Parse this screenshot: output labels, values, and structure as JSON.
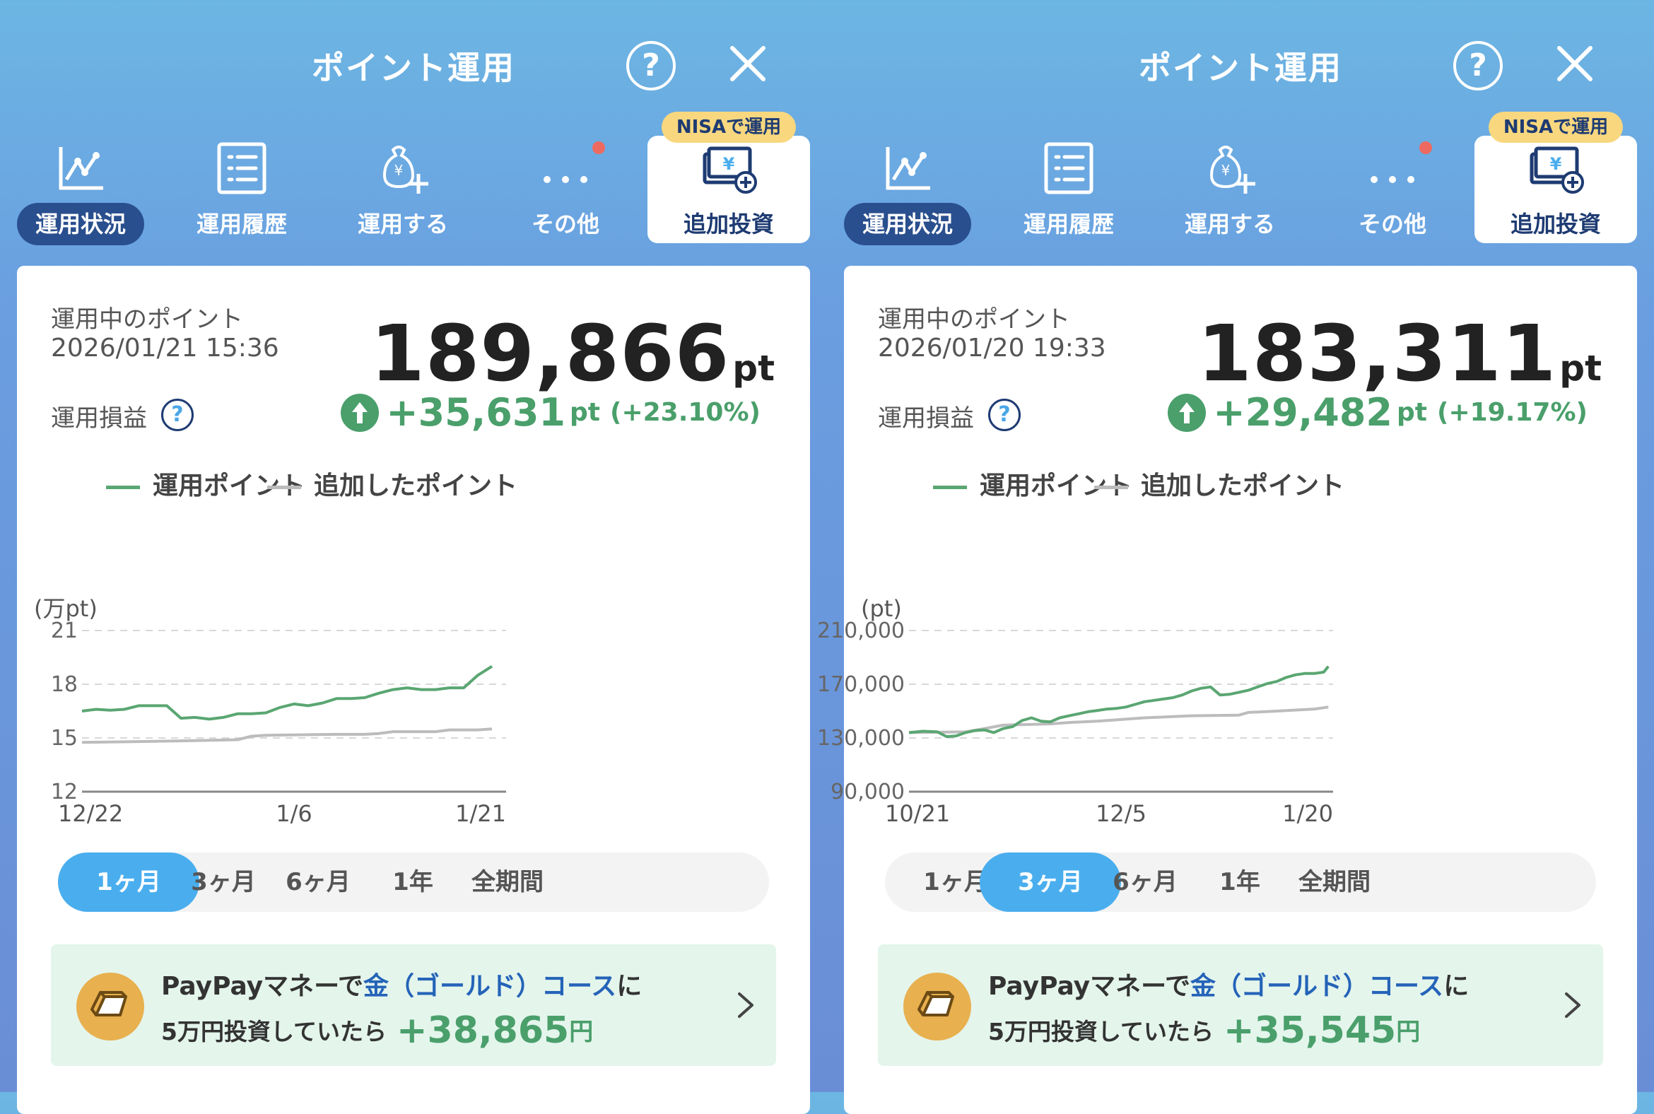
{
  "panels": [
    {
      "header": {
        "title": "ポイント運用",
        "help": "?"
      },
      "nav": {
        "items": [
          "運用状況",
          "運用履歴",
          "運用する",
          "その他"
        ],
        "add_label": "追加投資",
        "nisa_badge": "NISAで運用"
      },
      "summary": {
        "running_label": "運用中のポイント",
        "timestamp": "2026/01/21 15:36",
        "total": "189,866",
        "unit": "pt",
        "pl_label": "運用損益",
        "help": "?",
        "profit": "+35,631",
        "profit_unit": "pt",
        "profit_pct": "(+23.10%)"
      },
      "legend": {
        "series1": "運用ポイント",
        "series2": "追加したポイント"
      },
      "chart_data": {
        "type": "line",
        "ylabel": "(万pt)",
        "yticks": [
          "21",
          "18",
          "15",
          "12"
        ],
        "ylim": [
          12,
          21
        ],
        "xticks": [
          "12/22",
          "1/6",
          "1/21"
        ],
        "xlim": [
          0,
          30
        ],
        "series": [
          {
            "name": "運用ポイント",
            "color": "#5aa672",
            "points": [
              [
                0,
                16.5
              ],
              [
                1,
                16.6
              ],
              [
                2,
                16.55
              ],
              [
                3,
                16.6
              ],
              [
                4,
                16.8
              ],
              [
                5,
                16.8
              ],
              [
                6,
                16.8
              ],
              [
                7,
                16.1
              ],
              [
                8,
                16.15
              ],
              [
                9,
                16.05
              ],
              [
                10,
                16.15
              ],
              [
                11,
                16.35
              ],
              [
                12,
                16.35
              ],
              [
                13,
                16.4
              ],
              [
                14,
                16.7
              ],
              [
                15,
                16.9
              ],
              [
                16,
                16.8
              ],
              [
                17,
                16.95
              ],
              [
                18,
                17.2
              ],
              [
                19,
                17.2
              ],
              [
                20,
                17.25
              ],
              [
                21,
                17.5
              ],
              [
                22,
                17.7
              ],
              [
                23,
                17.8
              ],
              [
                24,
                17.7
              ],
              [
                25,
                17.7
              ],
              [
                26,
                17.8
              ],
              [
                27,
                17.8
              ],
              [
                28,
                18.5
              ],
              [
                29,
                19.0
              ]
            ]
          },
          {
            "name": "追加したポイント",
            "color": "#bcbcbc",
            "points": [
              [
                0,
                14.75
              ],
              [
                4,
                14.8
              ],
              [
                8,
                14.85
              ],
              [
                11,
                14.9
              ],
              [
                12,
                15.1
              ],
              [
                13,
                15.15
              ],
              [
                18,
                15.2
              ],
              [
                20,
                15.2
              ],
              [
                21,
                15.25
              ],
              [
                22,
                15.35
              ],
              [
                25,
                15.35
              ],
              [
                26,
                15.45
              ],
              [
                28,
                15.45
              ],
              [
                29,
                15.5
              ]
            ]
          }
        ]
      },
      "tabs": {
        "items": [
          "1ヶ月",
          "3ヶ月",
          "6ヶ月",
          "1年",
          "全期間"
        ],
        "active": 0
      },
      "promo": {
        "pre": "PayPayマネーで",
        "highlight": "金（ゴールド）コース",
        "post": "に",
        "line2": "5万円投資していたら",
        "amount": "+38,865",
        "unit": "円"
      }
    },
    {
      "header": {
        "title": "ポイント運用",
        "help": "?"
      },
      "nav": {
        "items": [
          "運用状況",
          "運用履歴",
          "運用する",
          "その他"
        ],
        "add_label": "追加投資",
        "nisa_badge": "NISAで運用"
      },
      "summary": {
        "running_label": "運用中のポイント",
        "timestamp": "2026/01/20 19:33",
        "total": "183,311",
        "unit": "pt",
        "pl_label": "運用損益",
        "help": "?",
        "profit": "+29,482",
        "profit_unit": "pt",
        "profit_pct": "(+19.17%)"
      },
      "legend": {
        "series1": "運用ポイント",
        "series2": "追加したポイント"
      },
      "chart_data": {
        "type": "line",
        "ylabel": "(pt)",
        "yticks": [
          "210,000",
          "170,000",
          "130,000",
          "90,000"
        ],
        "ylim": [
          90000,
          210000
        ],
        "xticks": [
          "10/21",
          "12/5",
          "1/20"
        ],
        "xlim": [
          0,
          90
        ],
        "series": [
          {
            "name": "運用ポイント",
            "color": "#5aa672",
            "points": [
              [
                0,
                134000
              ],
              [
                3,
                135000
              ],
              [
                6,
                134500
              ],
              [
                8,
                131000
              ],
              [
                10,
                131500
              ],
              [
                12,
                134000
              ],
              [
                14,
                135500
              ],
              [
                16,
                136000
              ],
              [
                18,
                134000
              ],
              [
                20,
                137000
              ],
              [
                22,
                138500
              ],
              [
                24,
                143000
              ],
              [
                26,
                145000
              ],
              [
                28,
                142500
              ],
              [
                30,
                142000
              ],
              [
                32,
                145000
              ],
              [
                34,
                146500
              ],
              [
                36,
                148000
              ],
              [
                38,
                149500
              ],
              [
                40,
                150500
              ],
              [
                42,
                151500
              ],
              [
                44,
                152000
              ],
              [
                46,
                153000
              ],
              [
                48,
                155000
              ],
              [
                50,
                157000
              ],
              [
                52,
                158000
              ],
              [
                54,
                159000
              ],
              [
                56,
                160000
              ],
              [
                58,
                162000
              ],
              [
                60,
                165000
              ],
              [
                62,
                167000
              ],
              [
                64,
                168000
              ],
              [
                66,
                162000
              ],
              [
                68,
                162500
              ],
              [
                70,
                164000
              ],
              [
                72,
                165500
              ],
              [
                74,
                168000
              ],
              [
                76,
                170500
              ],
              [
                78,
                172000
              ],
              [
                80,
                175000
              ],
              [
                82,
                177000
              ],
              [
                84,
                178000
              ],
              [
                86,
                178000
              ],
              [
                88,
                179000
              ],
              [
                89,
                183311
              ]
            ]
          },
          {
            "name": "追加したポイント",
            "color": "#bcbcbc",
            "points": [
              [
                0,
                134000
              ],
              [
                12,
                134500
              ],
              [
                16,
                137000
              ],
              [
                20,
                139500
              ],
              [
                30,
                140500
              ],
              [
                34,
                141500
              ],
              [
                40,
                142500
              ],
              [
                44,
                143500
              ],
              [
                50,
                145000
              ],
              [
                60,
                146500
              ],
              [
                70,
                147000
              ],
              [
                72,
                149000
              ],
              [
                78,
                150000
              ],
              [
                86,
                151500
              ],
              [
                89,
                153000
              ]
            ]
          }
        ]
      },
      "tabs": {
        "items": [
          "1ヶ月",
          "3ヶ月",
          "6ヶ月",
          "1年",
          "全期間"
        ],
        "active": 1
      },
      "promo": {
        "pre": "PayPayマネーで",
        "highlight": "金（ゴールド）コース",
        "post": "に",
        "line2": "5万円投資していたら",
        "amount": "+35,545",
        "unit": "円"
      }
    }
  ]
}
